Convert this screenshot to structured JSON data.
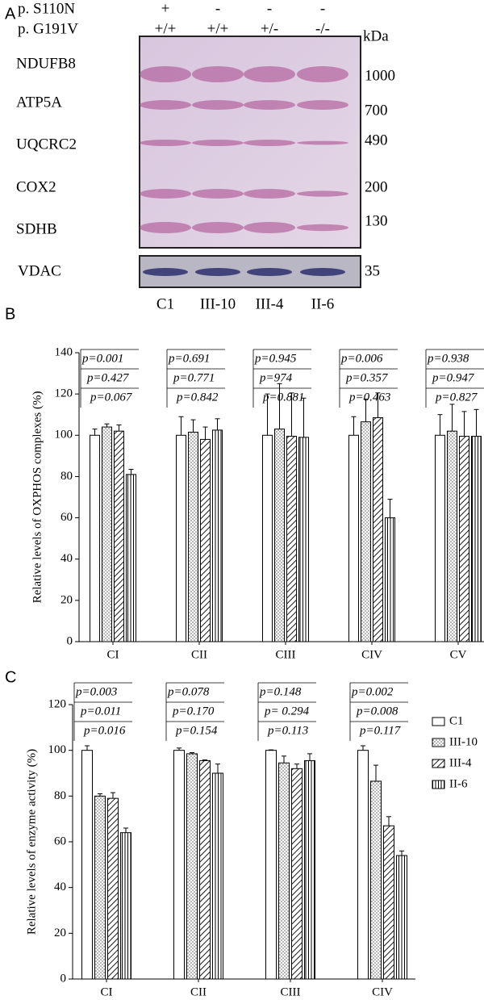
{
  "panel_labels": [
    "A",
    "B",
    "C"
  ],
  "blot": {
    "genotype_rows": [
      {
        "label": "p. S110N",
        "lanes": [
          "+",
          "-",
          "-",
          "-"
        ]
      },
      {
        "label": "p. G191V",
        "lanes": [
          "+/+",
          "+/+",
          "+/-",
          "-/-"
        ]
      }
    ],
    "bands": [
      "NDUFB8",
      "ATP5A",
      "UQCRC2",
      "COX2",
      "SDHB"
    ],
    "kda_unit": "kDa",
    "kda": [
      1000,
      700,
      490,
      200,
      130
    ],
    "loading": "VDAC",
    "loading_kda": 35,
    "lanes": [
      "C1",
      "III-10",
      "III-4",
      "II-6"
    ]
  },
  "chart_data": [
    {
      "type": "bar",
      "y_label": "Relative levels of OXPHOS complexes (%)",
      "categories": [
        "CI",
        "CII",
        "CIII",
        "CIV",
        "CV"
      ],
      "series": [
        {
          "pattern": "none",
          "values": [
            100,
            100,
            100,
            100,
            100
          ],
          "errors": [
            3,
            9,
            20,
            9,
            10
          ]
        },
        {
          "pattern": "dots",
          "values": [
            104,
            101.5,
            103,
            106.5,
            102
          ],
          "errors": [
            1.5,
            6,
            22,
            11,
            13
          ]
        },
        {
          "pattern": "hatch",
          "values": [
            102,
            98,
            99.5,
            108.5,
            99.5
          ],
          "errors": [
            3,
            6,
            21,
            12,
            12
          ]
        },
        {
          "pattern": "stripes",
          "values": [
            81,
            102.5,
            99,
            60,
            99.5
          ],
          "errors": [
            2.5,
            5.5,
            19,
            9,
            13
          ]
        }
      ],
      "ylim": [
        0,
        140
      ],
      "yticks": [
        0,
        20,
        40,
        60,
        80,
        100,
        120,
        140
      ],
      "annotations": [
        [
          "p=0.001",
          "p=0.427",
          "p=0.067"
        ],
        [
          "p=0.691",
          "p=0.771",
          "p=0.842"
        ],
        [
          "p=0.945",
          "p=974",
          "p=0.881"
        ],
        [
          "p=0.006",
          "p=0.357",
          "p=0.463"
        ],
        [
          "p=0.938",
          "p=0.947",
          "p=0.827"
        ]
      ]
    },
    {
      "type": "bar",
      "y_label": "Relative levels of enzyme activity (%)",
      "categories": [
        "CI",
        "CII",
        "CIII",
        "CIV"
      ],
      "series": [
        {
          "name": "C1",
          "pattern": "none",
          "values": [
            100,
            100,
            100,
            100
          ],
          "errors": [
            2,
            1,
            0.2,
            2
          ]
        },
        {
          "name": "III-10",
          "pattern": "dots",
          "values": [
            80,
            98.5,
            94.5,
            86.5
          ],
          "errors": [
            1,
            0.5,
            3,
            7
          ]
        },
        {
          "name": "III-4",
          "pattern": "hatch",
          "values": [
            79,
            95.5,
            92,
            67
          ],
          "errors": [
            2.5,
            0.3,
            2,
            4
          ]
        },
        {
          "name": "II-6",
          "pattern": "stripes",
          "values": [
            64,
            90,
            95.5,
            54
          ],
          "errors": [
            2,
            4,
            3,
            2
          ]
        }
      ],
      "ylim": [
        0,
        120
      ],
      "yticks": [
        0,
        20,
        40,
        60,
        80,
        100,
        120
      ],
      "legend": "right",
      "annotations": [
        [
          "p=0.003",
          "p=0.011",
          "p=0.016"
        ],
        [
          "p=0.078",
          "p=0.170",
          "p=0.154"
        ],
        [
          "p=0.148",
          "p= 0.294",
          "p=0.113"
        ],
        [
          "p=0.002",
          "p=0.008",
          "p=0.117"
        ]
      ]
    }
  ]
}
